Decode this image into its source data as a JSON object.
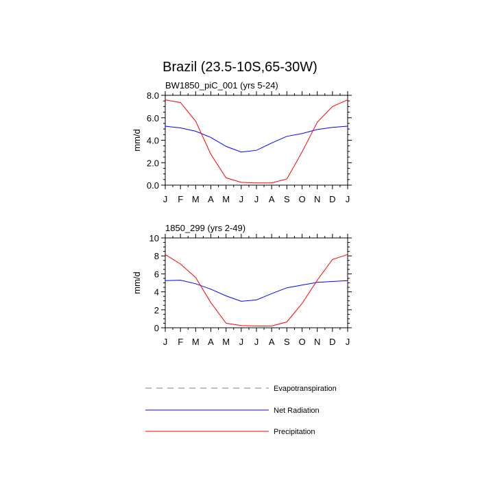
{
  "title": "Brazil (23.5-10S,65-30W)",
  "months": [
    "J",
    "F",
    "M",
    "A",
    "M",
    "J",
    "J",
    "A",
    "S",
    "O",
    "N",
    "D",
    "J"
  ],
  "legend": {
    "evapotranspiration": "Evapotranspiration",
    "net_radiation": "Net Radiation",
    "precipitation": "Precipitation"
  },
  "colors": {
    "net_radiation": "#0000ff",
    "precipitation": "#ff0000",
    "evapotranspiration": "#808080"
  },
  "chart_data": [
    {
      "type": "line",
      "title": "BW1850_piC_001 (yrs 5-24)",
      "ylabel": "mm/d",
      "ylim": [
        0,
        8
      ],
      "yticks": [
        0,
        2,
        4,
        6,
        8
      ],
      "ytick_labels": [
        "0.0",
        "2.0",
        "4.0",
        "6.0",
        "8.0"
      ],
      "x": [
        "J",
        "F",
        "M",
        "A",
        "M",
        "J",
        "J",
        "A",
        "S",
        "O",
        "N",
        "D",
        "J"
      ],
      "series": [
        {
          "name": "Net Radiation",
          "key": "net_radiation",
          "values": [
            5.25,
            5.1,
            4.8,
            4.25,
            3.45,
            2.95,
            3.1,
            3.75,
            4.35,
            4.6,
            4.95,
            5.15,
            5.25
          ]
        },
        {
          "name": "Precipitation",
          "key": "precipitation",
          "values": [
            7.6,
            7.35,
            5.7,
            2.75,
            0.65,
            0.25,
            0.2,
            0.2,
            0.55,
            2.95,
            5.6,
            7.0,
            7.6
          ]
        }
      ]
    },
    {
      "type": "line",
      "title": "1850_299 (yrs 2-49)",
      "ylabel": "mm/d",
      "ylim": [
        0,
        10
      ],
      "yticks": [
        0,
        2,
        4,
        6,
        8,
        10
      ],
      "ytick_labels": [
        "0",
        "2",
        "4",
        "6",
        "8",
        "10"
      ],
      "x": [
        "J",
        "F",
        "M",
        "A",
        "M",
        "J",
        "J",
        "A",
        "S",
        "O",
        "N",
        "D",
        "J"
      ],
      "series": [
        {
          "name": "Net Radiation",
          "key": "net_radiation",
          "values": [
            5.25,
            5.3,
            4.9,
            4.3,
            3.55,
            2.95,
            3.1,
            3.8,
            4.45,
            4.75,
            5.05,
            5.15,
            5.25
          ]
        },
        {
          "name": "Precipitation",
          "key": "precipitation",
          "values": [
            8.15,
            7.1,
            5.6,
            2.8,
            0.5,
            0.25,
            0.2,
            0.2,
            0.65,
            2.7,
            5.3,
            7.6,
            8.15
          ]
        }
      ]
    }
  ]
}
